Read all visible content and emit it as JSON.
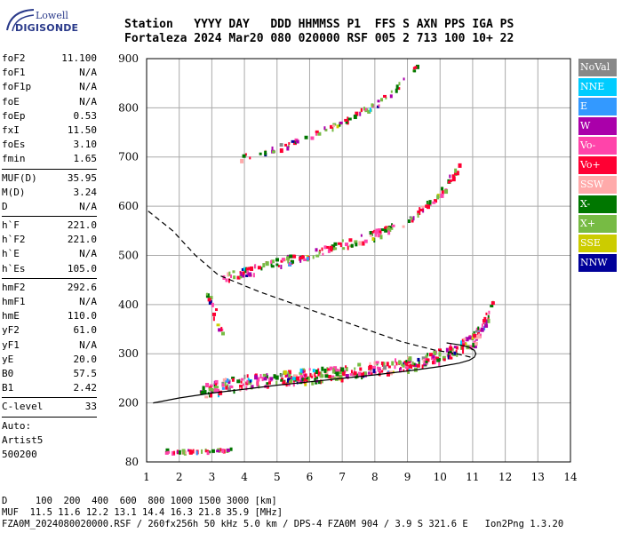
{
  "logo": {
    "line1": "Lowell",
    "line2": "DIGISONDE"
  },
  "header": {
    "line1": "Station   YYYY DAY   DDD HHMMSS P1  FFS S AXN PPS IGA PS",
    "line2": "Fortaleza 2024 Mar20 080 020000 RSF 005 2 713 100 10+ 22"
  },
  "params_group1": [
    {
      "k": "foF2",
      "v": "11.100"
    },
    {
      "k": "foF1",
      "v": "N/A"
    },
    {
      "k": "foF1p",
      "v": "N/A"
    },
    {
      "k": "foE",
      "v": "N/A"
    },
    {
      "k": "foEp",
      "v": "0.53"
    },
    {
      "k": "fxI",
      "v": "11.50"
    },
    {
      "k": "foEs",
      "v": "3.10"
    },
    {
      "k": "fmin",
      "v": "1.65"
    }
  ],
  "params_group2": [
    {
      "k": "MUF(D)",
      "v": "35.95"
    },
    {
      "k": "M(D)",
      "v": "3.24"
    },
    {
      "k": "D",
      "v": "N/A"
    }
  ],
  "params_group3": [
    {
      "k": "h`F",
      "v": "221.0"
    },
    {
      "k": "h`F2",
      "v": "221.0"
    },
    {
      "k": "h`E",
      "v": "N/A"
    },
    {
      "k": "h`Es",
      "v": "105.0"
    }
  ],
  "params_group4": [
    {
      "k": "hmF2",
      "v": "292.6"
    },
    {
      "k": "hmF1",
      "v": "N/A"
    },
    {
      "k": "hmE",
      "v": "110.0"
    },
    {
      "k": "yF2",
      "v": "61.0"
    },
    {
      "k": "yF1",
      "v": "N/A"
    },
    {
      "k": "yE",
      "v": "20.0"
    },
    {
      "k": "B0",
      "v": "57.5"
    },
    {
      "k": "B1",
      "v": "2.42"
    }
  ],
  "params_group5": [
    {
      "k": "C-level",
      "v": "33"
    }
  ],
  "autoscale": {
    "l1": "Auto:",
    "l2": "Artist5",
    "l3": "500200"
  },
  "legend": [
    {
      "label": "NoVal",
      "color": "#888888"
    },
    {
      "label": "NNE",
      "color": "#00ccff"
    },
    {
      "label": "E",
      "color": "#3399ff"
    },
    {
      "label": "W",
      "color": "#aa00aa"
    },
    {
      "label": "Vo-",
      "color": "#ff44aa"
    },
    {
      "label": "Vo+",
      "color": "#ff0033"
    },
    {
      "label": "SSW",
      "color": "#ffaaaa"
    },
    {
      "label": "X-",
      "color": "#007700"
    },
    {
      "label": "X+",
      "color": "#77bb44"
    },
    {
      "label": "SSE",
      "color": "#cccc00"
    },
    {
      "label": "NNW",
      "color": "#000099"
    }
  ],
  "chart_data": {
    "type": "scatter",
    "xlim": [
      1,
      14
    ],
    "ylim": [
      80,
      900
    ],
    "x_ticks": [
      1,
      2,
      3,
      4,
      5,
      6,
      7,
      8,
      9,
      10,
      11,
      12,
      13,
      14
    ],
    "y_ticks": [
      80,
      200,
      300,
      400,
      500,
      600,
      700,
      800,
      900
    ],
    "grid": true,
    "profile_curve": {
      "x": [
        1.2,
        2.0,
        3.0,
        4.0,
        5.0,
        6.0,
        7.0,
        8.0,
        9.0,
        10.0,
        10.6,
        10.9,
        11.05,
        11.1,
        11.05,
        10.9,
        10.6,
        10.2
      ],
      "y": [
        200,
        210,
        220,
        228,
        236,
        243,
        250,
        257,
        265,
        274,
        281,
        287,
        293,
        300,
        307,
        313,
        318,
        322
      ]
    },
    "dashed_curve": {
      "x": [
        1.05,
        1.8,
        2.5,
        3.2,
        4.5,
        6.0,
        7.5,
        8.8,
        9.8,
        10.5,
        11.0
      ],
      "y": [
        590,
        550,
        500,
        460,
        425,
        390,
        355,
        325,
        308,
        300,
        292
      ]
    },
    "traces": [
      {
        "name": "O-trace F2",
        "x": [
          2.6,
          3,
          4,
          5,
          6,
          7,
          8,
          9,
          10,
          10.5,
          11,
          11.3,
          11.6
        ],
        "y": [
          225,
          232,
          245,
          252,
          258,
          264,
          272,
          282,
          298,
          312,
          330,
          360,
          400
        ]
      },
      {
        "name": "2nd hop F2",
        "x": [
          3.3,
          4,
          5,
          6,
          7,
          8,
          8.6,
          9,
          9.5,
          10,
          10.3,
          10.6
        ],
        "y": [
          458,
          468,
          488,
          505,
          525,
          545,
          560,
          575,
          600,
          630,
          660,
          690
        ]
      },
      {
        "name": "3rd hop F2",
        "x": [
          3.6,
          4.2,
          5.2,
          6.2,
          7.0,
          7.6,
          8.1,
          8.6,
          9.0,
          9.4
        ],
        "y": [
          695,
          705,
          725,
          752,
          775,
          795,
          812,
          840,
          865,
          895
        ]
      },
      {
        "name": "Es",
        "x": [
          2.8,
          3.1,
          3.3
        ],
        "y": [
          420,
          380,
          360
        ]
      },
      {
        "name": "E layer",
        "x": [
          1.5,
          2.0,
          2.6,
          3.1,
          3.6
        ],
        "y": [
          105,
          104,
          104,
          105,
          108
        ]
      }
    ]
  },
  "footer": {
    "line1": "D     100  200  400  600  800 1000 1500 3000 [km]",
    "line2": "MUF  11.5 11.6 12.2 13.1 14.4 16.3 21.8 35.9 [MHz]",
    "line3": "FZA0M_2024080020000.RSF / 260fx256h 50 kHz 5.0 km / DPS-4 FZA0M 904 / 3.9 S 321.6 E   Ion2Png 1.3.20"
  }
}
